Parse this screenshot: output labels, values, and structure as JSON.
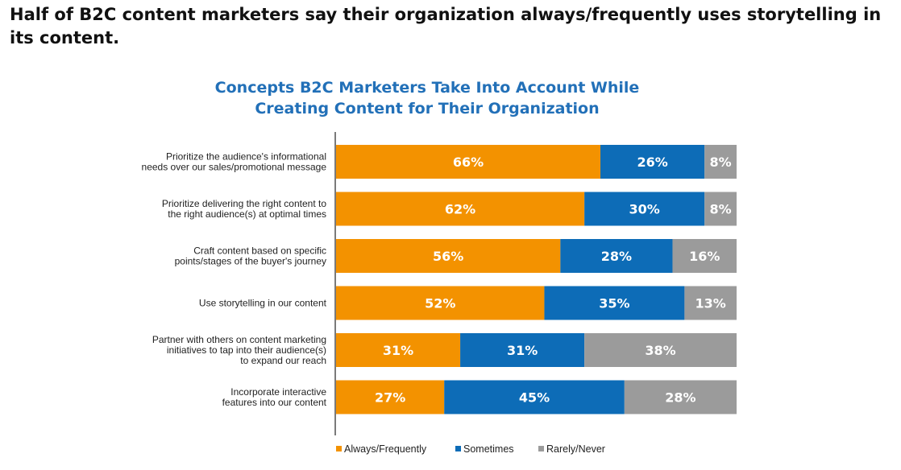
{
  "headline": "Half of B2C content marketers say their organization always/frequently uses storytelling in its content.",
  "chart_data": {
    "type": "bar",
    "orientation": "horizontal",
    "stacked": true,
    "title_lines": [
      "Concepts B2C Marketers Take Into Account While",
      "Creating Content for Their Organization"
    ],
    "categories": [
      [
        "Prioritize the audience's informational",
        "needs over our sales/promotional message"
      ],
      [
        "Prioritize delivering the right content to",
        "the right audience(s) at optimal times"
      ],
      [
        "Craft content based on specific",
        "points/stages of the buyer's journey"
      ],
      [
        "Use storytelling in our content"
      ],
      [
        "Partner with others on content marketing",
        "initiatives to tap into their audience(s)",
        "to expand our reach"
      ],
      [
        "Incorporate interactive",
        "features into our content"
      ]
    ],
    "series": [
      {
        "name": "Always/Frequently",
        "color": "#f39200",
        "values": [
          66,
          62,
          56,
          52,
          31,
          27
        ],
        "labels": [
          "66%",
          "62%",
          "56%",
          "52%",
          "31%",
          "27%"
        ]
      },
      {
        "name": "Sometimes",
        "color": "#0d6cb7",
        "values": [
          26,
          30,
          28,
          35,
          31,
          45
        ],
        "labels": [
          "26%",
          "30%",
          "28%",
          "35%",
          "31%",
          "45%"
        ]
      },
      {
        "name": "Rarely/Never",
        "color": "#9b9b9b",
        "values": [
          8,
          8,
          16,
          13,
          38,
          28
        ],
        "labels": [
          "8%",
          "8%",
          "16%",
          "13%",
          "38%",
          "28%"
        ]
      }
    ],
    "xlim": [
      0,
      100
    ],
    "grid": false,
    "legend_position": "bottom"
  }
}
